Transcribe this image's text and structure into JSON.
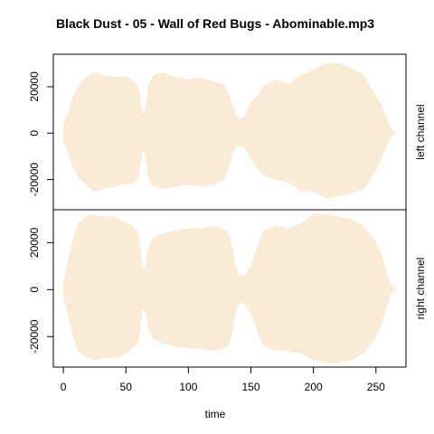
{
  "chart_data": {
    "type": "area",
    "title": "Black Dust - 05 - Wall of Red Bugs - Abominable.mp3",
    "xlabel": "time",
    "xlim": [
      -8,
      274
    ],
    "x_ticks": [
      0,
      50,
      100,
      150,
      200,
      250
    ],
    "fill_color": "#FAEBD7",
    "panels": [
      {
        "label": "left channel",
        "ylim": [
          -33000,
          34000
        ],
        "y_ticks": [
          -20000,
          0,
          20000
        ],
        "x": [
          0,
          2,
          5,
          8,
          12,
          18,
          25,
          32,
          40,
          48,
          55,
          60,
          63,
          65,
          68,
          72,
          80,
          90,
          100,
          110,
          120,
          128,
          132,
          135,
          138,
          140,
          145,
          150,
          155,
          160,
          170,
          180,
          190,
          200,
          210,
          220,
          230,
          240,
          250,
          255,
          258,
          261,
          263,
          265
        ],
        "upper": [
          3500,
          6000,
          10000,
          16000,
          20000,
          24000,
          26000,
          25000,
          24000,
          24500,
          23000,
          20000,
          9000,
          8000,
          20000,
          25000,
          26000,
          24000,
          23000,
          24000,
          22000,
          21000,
          17000,
          12000,
          8000,
          6000,
          7000,
          13000,
          16000,
          20000,
          23000,
          21000,
          25000,
          27000,
          30000,
          30000,
          28000,
          25000,
          16000,
          11000,
          7000,
          3000,
          1000,
          500
        ],
        "lower": [
          -3500,
          -6000,
          -10000,
          -15000,
          -19000,
          -22000,
          -25000,
          -24000,
          -23000,
          -22000,
          -22000,
          -19000,
          -8000,
          -8000,
          -19000,
          -23000,
          -24000,
          -23000,
          -22000,
          -23000,
          -22000,
          -20000,
          -15000,
          -9000,
          -6000,
          -5000,
          -6000,
          -11000,
          -15000,
          -18000,
          -20000,
          -21000,
          -25000,
          -25000,
          -28000,
          -27000,
          -26000,
          -24000,
          -16000,
          -10000,
          -6000,
          -3000,
          -1000,
          -500
        ]
      },
      {
        "label": "right channel",
        "ylim": [
          -33000,
          34000
        ],
        "y_ticks": [
          -20000,
          0,
          20000
        ],
        "x": [
          0,
          2,
          5,
          8,
          12,
          18,
          25,
          32,
          40,
          48,
          55,
          60,
          63,
          65,
          68,
          72,
          80,
          90,
          100,
          110,
          120,
          128,
          132,
          135,
          138,
          140,
          145,
          150,
          155,
          160,
          170,
          180,
          190,
          200,
          210,
          220,
          230,
          240,
          250,
          255,
          258,
          261,
          263,
          265
        ],
        "upper": [
          3500,
          8000,
          15000,
          22000,
          28000,
          31000,
          32000,
          31000,
          31000,
          29000,
          27000,
          24000,
          10000,
          8000,
          18000,
          22000,
          24000,
          25000,
          26000,
          26000,
          27000,
          26000,
          24000,
          18000,
          9000,
          6000,
          6000,
          10000,
          18000,
          25000,
          27000,
          26000,
          28000,
          32000,
          32000,
          31000,
          30000,
          27000,
          20000,
          14000,
          8000,
          3000,
          1000,
          500
        ],
        "lower": [
          -3500,
          -7000,
          -14000,
          -20000,
          -26000,
          -29000,
          -30000,
          -29000,
          -29000,
          -28000,
          -25000,
          -22000,
          -9000,
          -8000,
          -17000,
          -21000,
          -23000,
          -24000,
          -25000,
          -25000,
          -26000,
          -25000,
          -24000,
          -18000,
          -9000,
          -5000,
          -6000,
          -10000,
          -17000,
          -24000,
          -26000,
          -26000,
          -27000,
          -30000,
          -31000,
          -31000,
          -30000,
          -27000,
          -20000,
          -14000,
          -8000,
          -3000,
          -1000,
          -500
        ]
      }
    ]
  }
}
